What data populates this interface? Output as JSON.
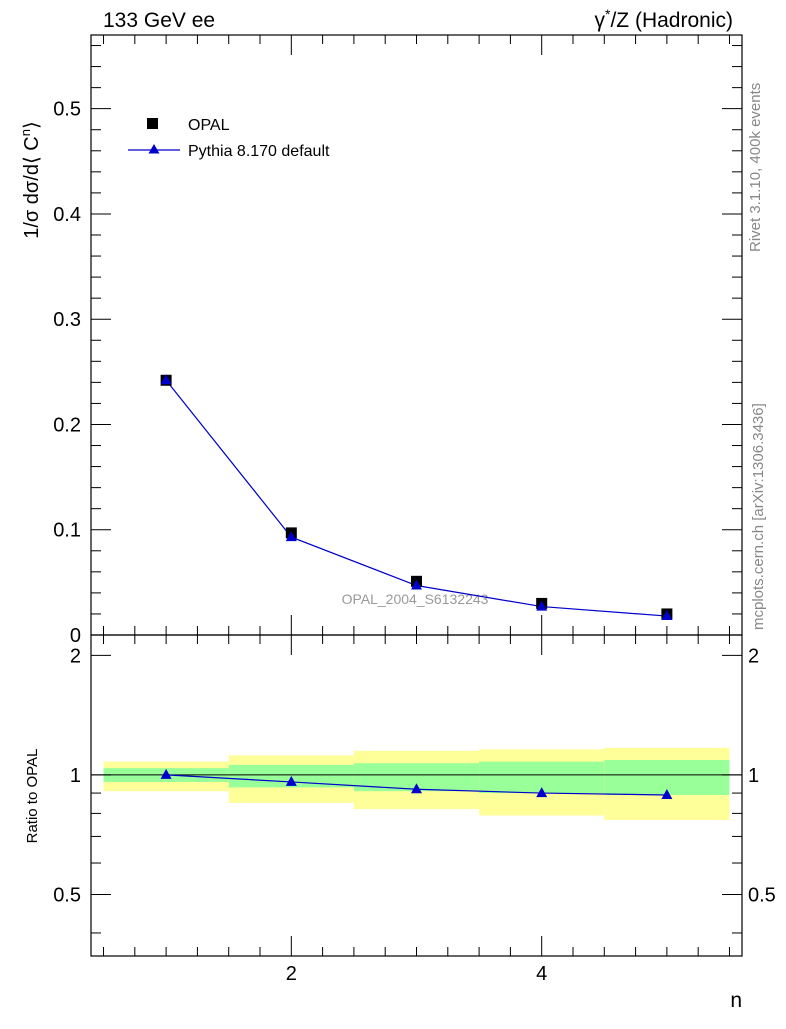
{
  "header": {
    "left_label": "133 GeV ee",
    "right_label_sup": "*",
    "right_label_pre": "γ",
    "right_label_post": "/Z (Hadronic)"
  },
  "side_labels": {
    "rivet": "Rivet 3.1.10,  400k events",
    "mcplots": "mcplots.cern.ch [arXiv:1306.3436]"
  },
  "watermark": "OPAL_2004_S6132243",
  "colors": {
    "mc": "#0000cc",
    "data": "#000000",
    "band_outer": "#ffff99",
    "band_inner": "#99ff99"
  },
  "chart_data": [
    {
      "type": "scatter",
      "ylabel_pre": "1/σ dσ/d⟨ C",
      "ylabel_sup": "n",
      "ylabel_post": "⟩",
      "xlim": [
        0.4,
        5.6
      ],
      "ylim": [
        0,
        0.57
      ],
      "yticks": [
        0,
        0.1,
        0.2,
        0.3,
        0.4,
        0.5
      ],
      "ytick_labels": [
        "0",
        "0.1",
        "0.2",
        "0.3",
        "0.4",
        "0.5"
      ],
      "legend_position": "top-left",
      "series": [
        {
          "name": "OPAL",
          "marker": "square",
          "x": [
            1,
            2,
            3,
            4,
            5
          ],
          "y": [
            0.242,
            0.097,
            0.051,
            0.03,
            0.02
          ]
        },
        {
          "name": "Pythia 8.170 default",
          "marker": "triangle",
          "x": [
            1,
            2,
            3,
            4,
            5
          ],
          "y": [
            0.242,
            0.093,
            0.047,
            0.027,
            0.018
          ]
        }
      ]
    },
    {
      "type": "line",
      "xlabel": "n",
      "ylabel": "Ratio to OPAL",
      "xlim": [
        0.4,
        5.6
      ],
      "ylim": [
        0.35,
        2.25
      ],
      "xticks": [
        2,
        4
      ],
      "xtick_labels": [
        "2",
        "4"
      ],
      "yticks": [
        0.5,
        1,
        2
      ],
      "ytick_labels": [
        "0.5",
        "1",
        "2"
      ],
      "bands": [
        {
          "x0": 0.5,
          "x1": 1.5,
          "inner": [
            0.96,
            1.04
          ],
          "outer": [
            0.91,
            1.08
          ]
        },
        {
          "x0": 1.5,
          "x1": 2.5,
          "inner": [
            0.93,
            1.06
          ],
          "outer": [
            0.85,
            1.12
          ]
        },
        {
          "x0": 2.5,
          "x1": 3.5,
          "inner": [
            0.91,
            1.07
          ],
          "outer": [
            0.82,
            1.15
          ]
        },
        {
          "x0": 3.5,
          "x1": 4.5,
          "inner": [
            0.9,
            1.08
          ],
          "outer": [
            0.79,
            1.16
          ]
        },
        {
          "x0": 4.5,
          "x1": 5.5,
          "inner": [
            0.89,
            1.09
          ],
          "outer": [
            0.77,
            1.17
          ]
        }
      ],
      "series": [
        {
          "name": "Pythia 8.170 default",
          "x": [
            1,
            2,
            3,
            4,
            5
          ],
          "y": [
            1.0,
            0.96,
            0.92,
            0.9,
            0.89
          ]
        }
      ]
    }
  ]
}
